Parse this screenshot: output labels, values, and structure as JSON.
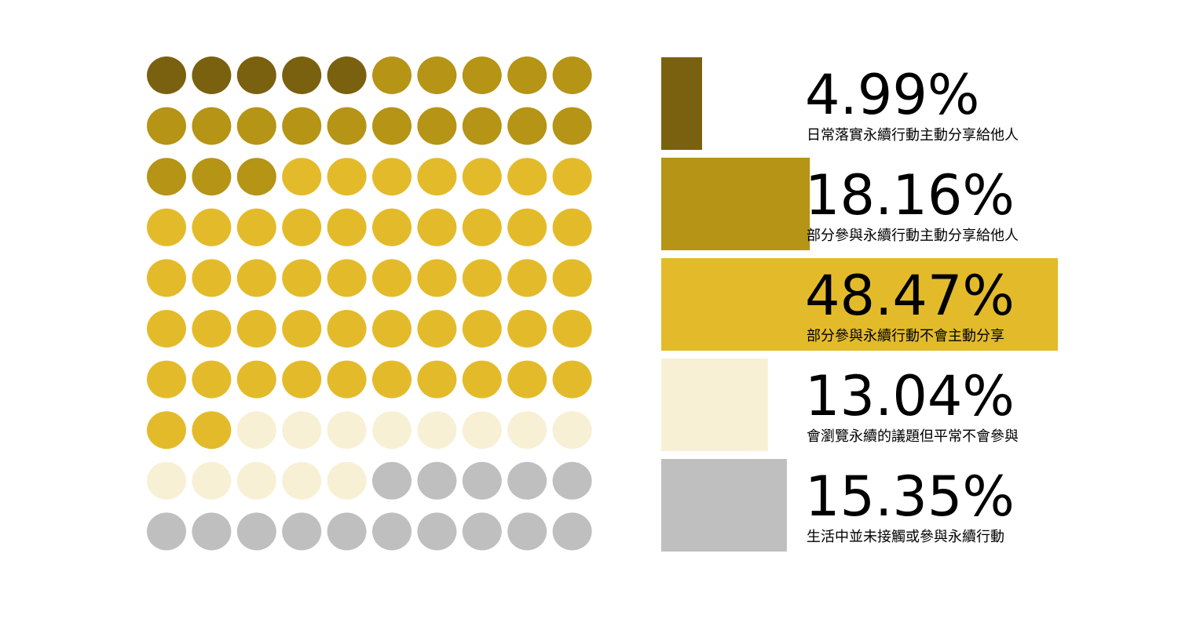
{
  "chart_data": {
    "type": "waffle",
    "categories": [
      "日常落實永續行動主動分享給他人",
      "部分參與永續行動主動分享給他人",
      "部分參與永續行動不會主動分享",
      "會瀏覽永續的議題但平常不會參與",
      "生活中並未接觸或參與永續行動"
    ],
    "values": [
      4.99,
      18.16,
      48.47,
      13.04,
      15.35
    ],
    "value_labels": [
      "4.99%",
      "18.16%",
      "48.47%",
      "13.04%",
      "15.35%"
    ],
    "colors": [
      "#7a610f",
      "#b59416",
      "#e3bb2a",
      "#f8f0d5",
      "#bfbfbf"
    ]
  }
}
